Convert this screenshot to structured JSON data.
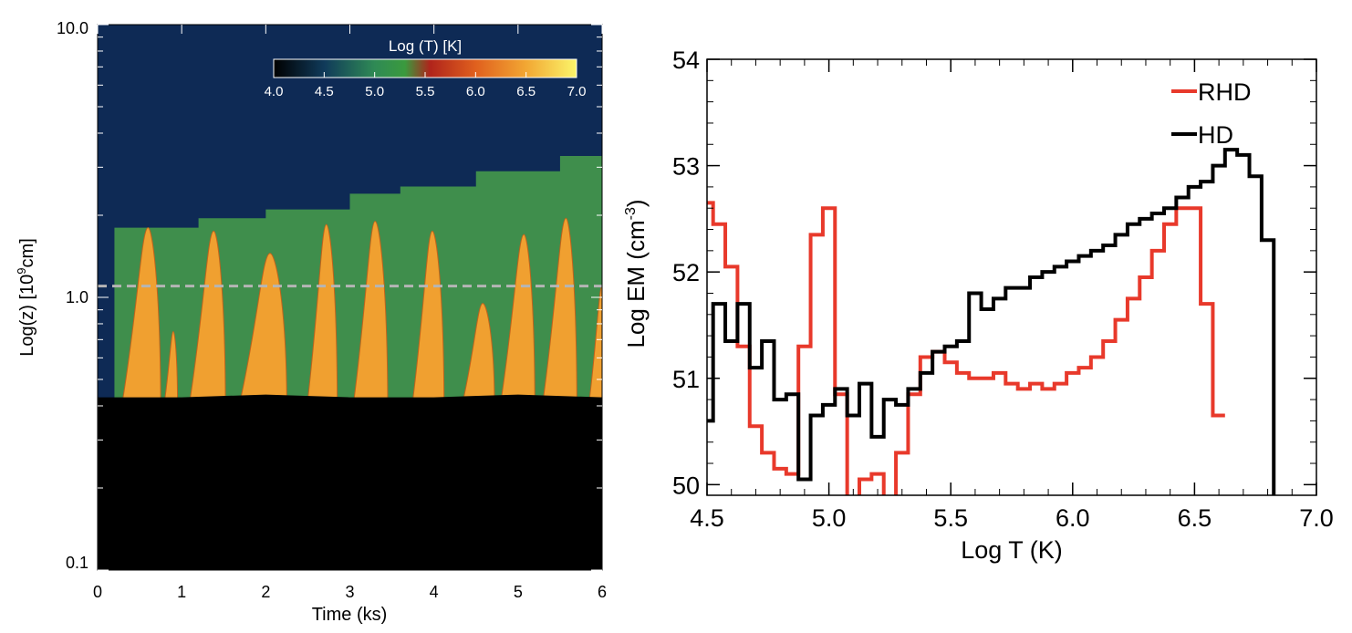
{
  "chart_data": [
    {
      "type": "heatmap",
      "xlabel": "Time (ks)",
      "ylabel_parts": [
        "Log(z) [10",
        "9",
        "cm]"
      ],
      "xlim": [
        0,
        6
      ],
      "ylim": [
        0.1,
        10.0
      ],
      "yscale": "log",
      "x_ticks": [
        "0",
        "1",
        "2",
        "3",
        "4",
        "5",
        "6"
      ],
      "y_ticks": [
        "0.1",
        "1.0",
        "10.0"
      ],
      "colorbar": {
        "title": "Log (T) [K]",
        "range": [
          4.0,
          7.0
        ],
        "ticks": [
          "4.0",
          "4.5",
          "5.0",
          "5.5",
          "6.0",
          "6.5",
          "7.0"
        ],
        "stops": [
          {
            "v": 4.0,
            "color": "#000000"
          },
          {
            "v": 4.5,
            "color": "#103a5a"
          },
          {
            "v": 5.0,
            "color": "#2f8a55"
          },
          {
            "v": 5.3,
            "color": "#3a9a3e"
          },
          {
            "v": 5.55,
            "color": "#b0241b"
          },
          {
            "v": 6.0,
            "color": "#e0601e"
          },
          {
            "v": 6.5,
            "color": "#f2a733"
          },
          {
            "v": 7.0,
            "color": "#fbf56a"
          }
        ]
      },
      "reference_line": {
        "y": 1.1,
        "style": "dashed",
        "color": "#b5b5b5"
      },
      "regions": {
        "corona_color": "#0e2a55",
        "tr_color": "#3f8e4c",
        "chromosphere_color": "#000000",
        "flare_color": "#f0a030"
      },
      "chromosphere_top": [
        {
          "t": 0.0,
          "z": 0.43
        },
        {
          "t": 1.0,
          "z": 0.43
        },
        {
          "t": 2.0,
          "z": 0.44
        },
        {
          "t": 3.0,
          "z": 0.43
        },
        {
          "t": 4.0,
          "z": 0.43
        },
        {
          "t": 5.0,
          "z": 0.44
        },
        {
          "t": 6.0,
          "z": 0.43
        }
      ],
      "tr_top": [
        {
          "t": 0.2,
          "z": 1.8
        },
        {
          "t": 0.7,
          "z": 1.8
        },
        {
          "t": 1.2,
          "z": 1.95
        },
        {
          "t": 2.0,
          "z": 2.1
        },
        {
          "t": 3.0,
          "z": 2.4
        },
        {
          "t": 3.6,
          "z": 2.55
        },
        {
          "t": 4.5,
          "z": 2.9
        },
        {
          "t": 5.5,
          "z": 3.3
        },
        {
          "t": 6.0,
          "z": 3.6
        }
      ],
      "flares": [
        {
          "t_start": 0.3,
          "t_peak": 0.6,
          "t_end": 0.75,
          "z_peak": 1.8
        },
        {
          "t_start": 0.8,
          "t_peak": 0.9,
          "t_end": 0.95,
          "z_peak": 0.75
        },
        {
          "t_start": 1.1,
          "t_peak": 1.38,
          "t_end": 1.52,
          "z_peak": 1.75
        },
        {
          "t_start": 1.7,
          "t_peak": 2.05,
          "t_end": 2.25,
          "z_peak": 1.45
        },
        {
          "t_start": 2.5,
          "t_peak": 2.72,
          "t_end": 2.85,
          "z_peak": 1.85
        },
        {
          "t_start": 3.05,
          "t_peak": 3.3,
          "t_end": 3.45,
          "z_peak": 1.9
        },
        {
          "t_start": 3.75,
          "t_peak": 3.98,
          "t_end": 4.12,
          "z_peak": 1.75
        },
        {
          "t_start": 4.35,
          "t_peak": 4.58,
          "t_end": 4.72,
          "z_peak": 0.95
        },
        {
          "t_start": 4.8,
          "t_peak": 5.07,
          "t_end": 5.2,
          "z_peak": 1.7
        },
        {
          "t_start": 5.3,
          "t_peak": 5.57,
          "t_end": 5.7,
          "z_peak": 1.95
        },
        {
          "t_start": 5.85,
          "t_peak": 6.0,
          "t_end": 6.0,
          "z_peak": 1.1
        }
      ]
    },
    {
      "type": "line",
      "step": true,
      "xlabel": "Log T (K)",
      "ylabel_parts": [
        "Log EM (cm",
        "-3",
        ")"
      ],
      "xlim": [
        4.5,
        7.0
      ],
      "ylim": [
        49.9,
        54.0
      ],
      "x_ticks": [
        "4.5",
        "5.0",
        "5.5",
        "6.0",
        "6.5",
        "7.0"
      ],
      "y_ticks": [
        "50",
        "51",
        "52",
        "53",
        "54"
      ],
      "legend_position": "top-right",
      "series": [
        {
          "name": "RHD",
          "color": "#e8392b",
          "x": [
            4.5,
            4.55,
            4.6,
            4.65,
            4.7,
            4.75,
            4.8,
            4.85,
            4.9,
            4.95,
            5.0,
            5.05,
            5.1,
            5.15,
            5.2,
            5.25,
            5.3,
            5.35,
            5.4,
            5.45,
            5.5,
            5.55,
            5.6,
            5.65,
            5.7,
            5.75,
            5.8,
            5.85,
            5.9,
            5.95,
            6.0,
            6.05,
            6.1,
            6.15,
            6.2,
            6.25,
            6.3,
            6.35,
            6.4,
            6.45,
            6.5,
            6.55,
            6.6
          ],
          "values": [
            52.65,
            52.45,
            52.05,
            51.3,
            50.55,
            50.3,
            50.15,
            50.1,
            51.3,
            52.35,
            52.6,
            50.85,
            49.8,
            50.05,
            50.1,
            49.8,
            50.3,
            50.85,
            51.2,
            51.25,
            51.15,
            51.05,
            51.0,
            51.0,
            51.05,
            50.95,
            50.9,
            50.95,
            50.9,
            50.95,
            51.05,
            51.1,
            51.2,
            51.35,
            51.55,
            51.75,
            51.95,
            52.2,
            52.45,
            52.6,
            52.6,
            51.7,
            50.65
          ]
        },
        {
          "name": "HD",
          "color": "#000000",
          "x": [
            4.5,
            4.55,
            4.6,
            4.65,
            4.7,
            4.75,
            4.8,
            4.85,
            4.9,
            4.95,
            5.0,
            5.05,
            5.1,
            5.15,
            5.2,
            5.25,
            5.3,
            5.35,
            5.4,
            5.45,
            5.5,
            5.55,
            5.6,
            5.65,
            5.7,
            5.75,
            5.8,
            5.85,
            5.9,
            5.95,
            6.0,
            6.05,
            6.1,
            6.15,
            6.2,
            6.25,
            6.3,
            6.35,
            6.4,
            6.45,
            6.5,
            6.55,
            6.6,
            6.65,
            6.7,
            6.75,
            6.8
          ],
          "values": [
            50.6,
            51.7,
            51.35,
            51.7,
            51.1,
            51.35,
            50.8,
            50.85,
            50.05,
            50.65,
            50.75,
            50.9,
            50.65,
            50.95,
            50.45,
            50.8,
            50.75,
            50.9,
            51.05,
            51.25,
            51.3,
            51.35,
            51.8,
            51.65,
            51.75,
            51.85,
            51.85,
            51.95,
            52.0,
            52.05,
            52.1,
            52.15,
            52.2,
            52.25,
            52.35,
            52.45,
            52.5,
            52.55,
            52.6,
            52.7,
            52.8,
            52.85,
            53.0,
            53.15,
            53.1,
            52.9,
            52.3
          ]
        }
      ]
    }
  ]
}
